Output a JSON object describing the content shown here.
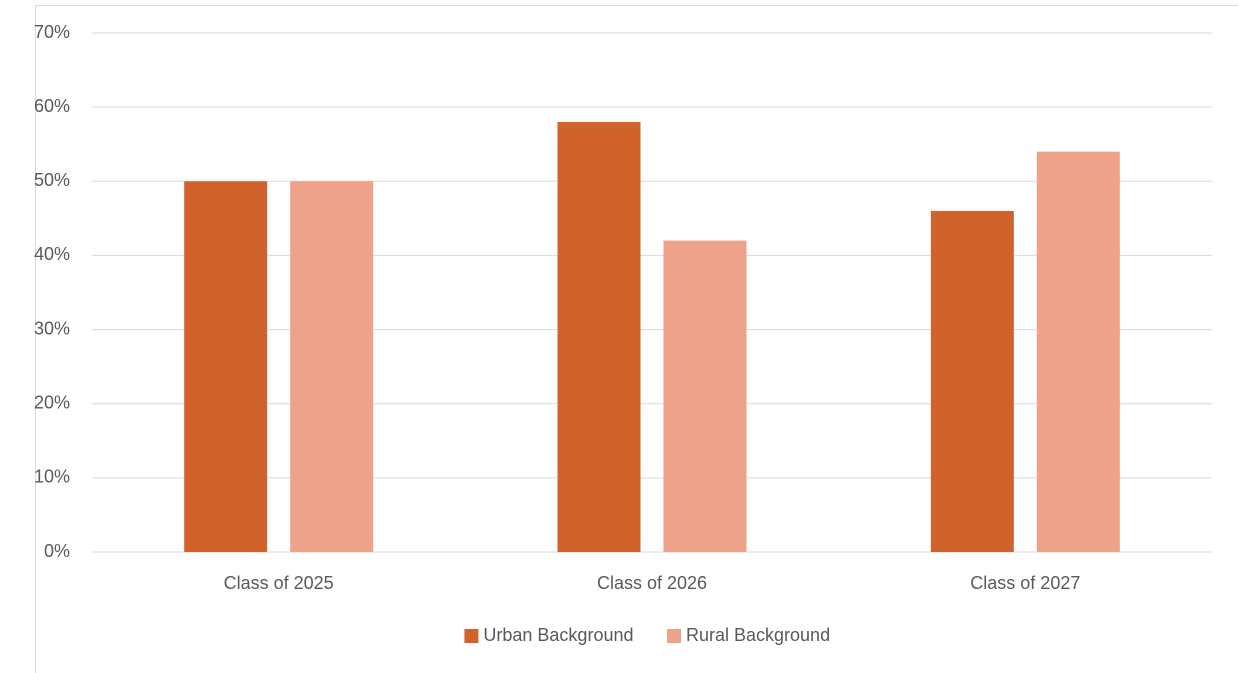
{
  "chart_data": {
    "type": "bar",
    "categories": [
      "Class of 2025",
      "Class of 2026",
      "Class of 2027"
    ],
    "series": [
      {
        "name": "Urban Background",
        "color": "#d0632b",
        "values": [
          50,
          58,
          46
        ]
      },
      {
        "name": "Rural Background",
        "color": "#efa28a",
        "values": [
          50,
          42,
          54
        ]
      }
    ],
    "ylim": [
      0,
      70
    ],
    "yticks": [
      {
        "value": 0,
        "label": "0%"
      },
      {
        "value": 10,
        "label": "10%"
      },
      {
        "value": 20,
        "label": "20%"
      },
      {
        "value": 30,
        "label": "30%"
      },
      {
        "value": 40,
        "label": "40%"
      },
      {
        "value": 50,
        "label": "50%"
      },
      {
        "value": 60,
        "label": "60%"
      },
      {
        "value": 70,
        "label": "70%"
      }
    ],
    "grid": true,
    "legend": "bottom"
  }
}
